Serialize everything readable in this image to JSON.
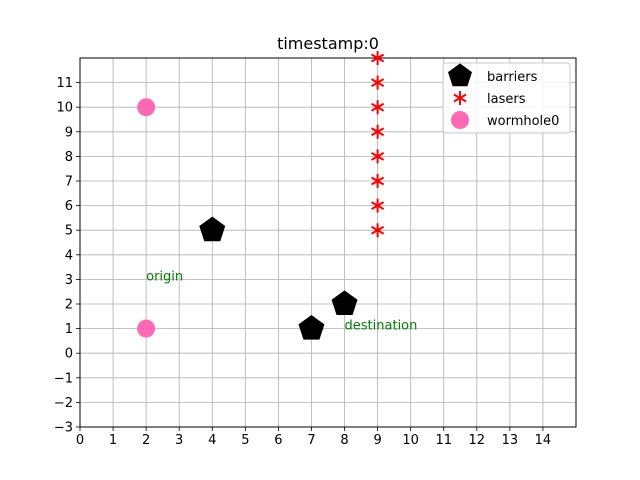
{
  "chart_data": {
    "type": "scatter",
    "title": "timestamp:0",
    "xlim": [
      0,
      15
    ],
    "ylim": [
      -3,
      12
    ],
    "x_ticks": [
      "0",
      "1",
      "2",
      "3",
      "4",
      "5",
      "6",
      "7",
      "8",
      "9",
      "10",
      "11",
      "12",
      "13",
      "14"
    ],
    "y_ticks": [
      "−3",
      "−2",
      "−1",
      "0",
      "1",
      "2",
      "3",
      "4",
      "5",
      "6",
      "7",
      "8",
      "9",
      "10",
      "11"
    ],
    "grid": true,
    "legend_position": "top-right",
    "series": [
      {
        "name": "barriers",
        "marker": "pentagon",
        "color": "#000000",
        "points": [
          [
            4,
            5
          ],
          [
            7,
            1
          ],
          [
            8,
            2
          ]
        ]
      },
      {
        "name": "lasers",
        "marker": "star",
        "color": "#ff0000",
        "points": [
          [
            9,
            5
          ],
          [
            9,
            6
          ],
          [
            9,
            7
          ],
          [
            9,
            8
          ],
          [
            9,
            9
          ],
          [
            9,
            10
          ],
          [
            9,
            11
          ],
          [
            9,
            12
          ]
        ]
      },
      {
        "name": "wormhole0",
        "marker": "circle",
        "color": "#ff69b4",
        "points": [
          [
            2,
            1
          ],
          [
            2,
            10
          ]
        ]
      }
    ],
    "annotations": [
      {
        "text": "origin",
        "x": 2,
        "y": 3,
        "color": "#008000"
      },
      {
        "text": "destination",
        "x": 8,
        "y": 1,
        "color": "#008000"
      }
    ]
  }
}
